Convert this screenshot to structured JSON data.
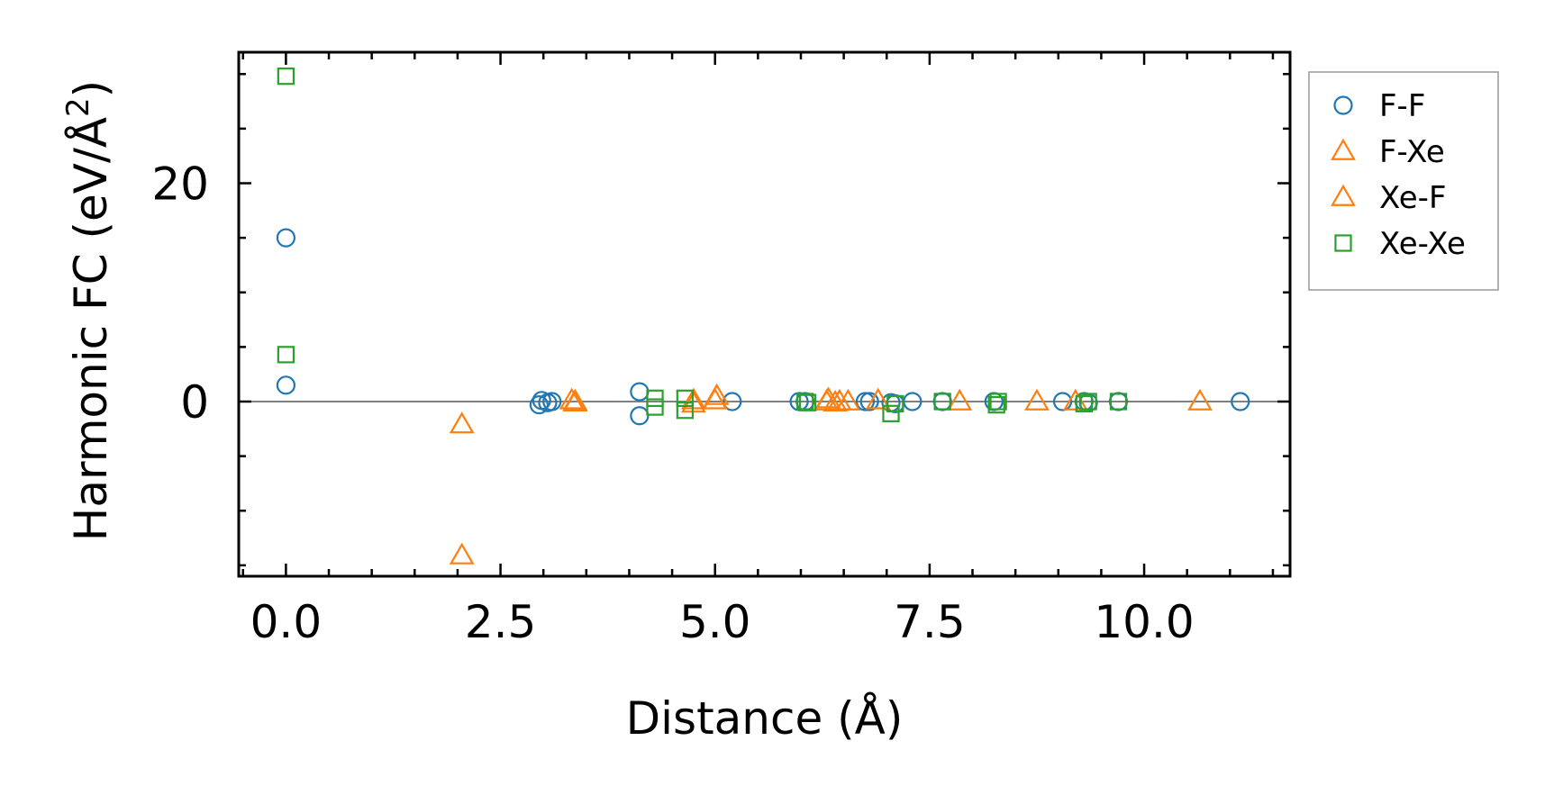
{
  "chart_data": {
    "type": "scatter",
    "xlabel": "Distance (Å)",
    "ylabel": "Harmonic FC (eV/Å",
    "ylabel_sup": "2",
    "ylabel_close": ")",
    "xlim": [
      -0.55,
      11.7
    ],
    "ylim": [
      -16.0,
      32.0
    ],
    "xticks": [
      0.0,
      2.5,
      5.0,
      7.5,
      10.0
    ],
    "xtick_labels": [
      "0.0",
      "2.5",
      "5.0",
      "7.5",
      "10.0"
    ],
    "yticks": [
      0,
      20
    ],
    "ytick_labels": [
      "0",
      "20"
    ],
    "x_minor_step": 0.5,
    "y_minor_step": 5,
    "zero_line": true,
    "legend_position": "outside-right-top",
    "series": [
      {
        "name": "F-F",
        "marker": "circle",
        "color": "#1f77b4",
        "points": [
          [
            0.0,
            15.0
          ],
          [
            0.0,
            1.5
          ],
          [
            2.95,
            -0.3
          ],
          [
            2.98,
            0.1
          ],
          [
            3.05,
            -0.1
          ],
          [
            3.1,
            0.0
          ],
          [
            4.12,
            0.9
          ],
          [
            4.12,
            -1.3
          ],
          [
            5.2,
            0.0
          ],
          [
            5.98,
            0.0
          ],
          [
            6.05,
            0.0
          ],
          [
            6.75,
            0.0
          ],
          [
            6.8,
            0.0
          ],
          [
            7.05,
            -0.1
          ],
          [
            7.1,
            -0.2
          ],
          [
            7.3,
            0.0
          ],
          [
            7.65,
            0.0
          ],
          [
            8.25,
            0.0
          ],
          [
            9.05,
            0.0
          ],
          [
            9.3,
            0.0
          ],
          [
            9.35,
            -0.1
          ],
          [
            9.7,
            0.0
          ],
          [
            11.12,
            0.0
          ]
        ]
      },
      {
        "name": "F-Xe",
        "marker": "triangle",
        "color": "#ff7f0e",
        "points": [
          [
            2.05,
            -2.1
          ],
          [
            3.33,
            0.1
          ],
          [
            3.37,
            0.0
          ],
          [
            4.75,
            -0.2
          ],
          [
            5.0,
            0.1
          ],
          [
            6.3,
            0.0
          ],
          [
            6.4,
            -0.1
          ],
          [
            6.55,
            0.0
          ],
          [
            6.9,
            0.1
          ],
          [
            7.85,
            0.0
          ],
          [
            8.75,
            0.0
          ],
          [
            9.2,
            0.0
          ],
          [
            10.65,
            0.0
          ]
        ]
      },
      {
        "name": "Xe-F",
        "marker": "triangle",
        "color": "#ff7f0e",
        "points": [
          [
            2.05,
            -14.1
          ],
          [
            3.37,
            -0.1
          ],
          [
            4.75,
            0.1
          ],
          [
            5.02,
            0.5
          ],
          [
            6.32,
            0.2
          ],
          [
            6.45,
            0.0
          ]
        ]
      },
      {
        "name": "Xe-Xe",
        "marker": "square",
        "color": "#2ca02c",
        "points": [
          [
            0.0,
            29.8
          ],
          [
            0.0,
            4.3
          ],
          [
            4.3,
            0.3
          ],
          [
            4.3,
            -0.5
          ],
          [
            4.65,
            0.3
          ],
          [
            4.65,
            -0.8
          ],
          [
            6.05,
            0.0
          ],
          [
            6.08,
            -0.1
          ],
          [
            7.05,
            -1.1
          ],
          [
            7.1,
            -0.2
          ],
          [
            7.65,
            0.0
          ],
          [
            8.28,
            -0.3
          ],
          [
            8.3,
            0.0
          ],
          [
            9.3,
            -0.2
          ],
          [
            9.35,
            0.0
          ],
          [
            9.7,
            0.0
          ]
        ]
      }
    ]
  }
}
